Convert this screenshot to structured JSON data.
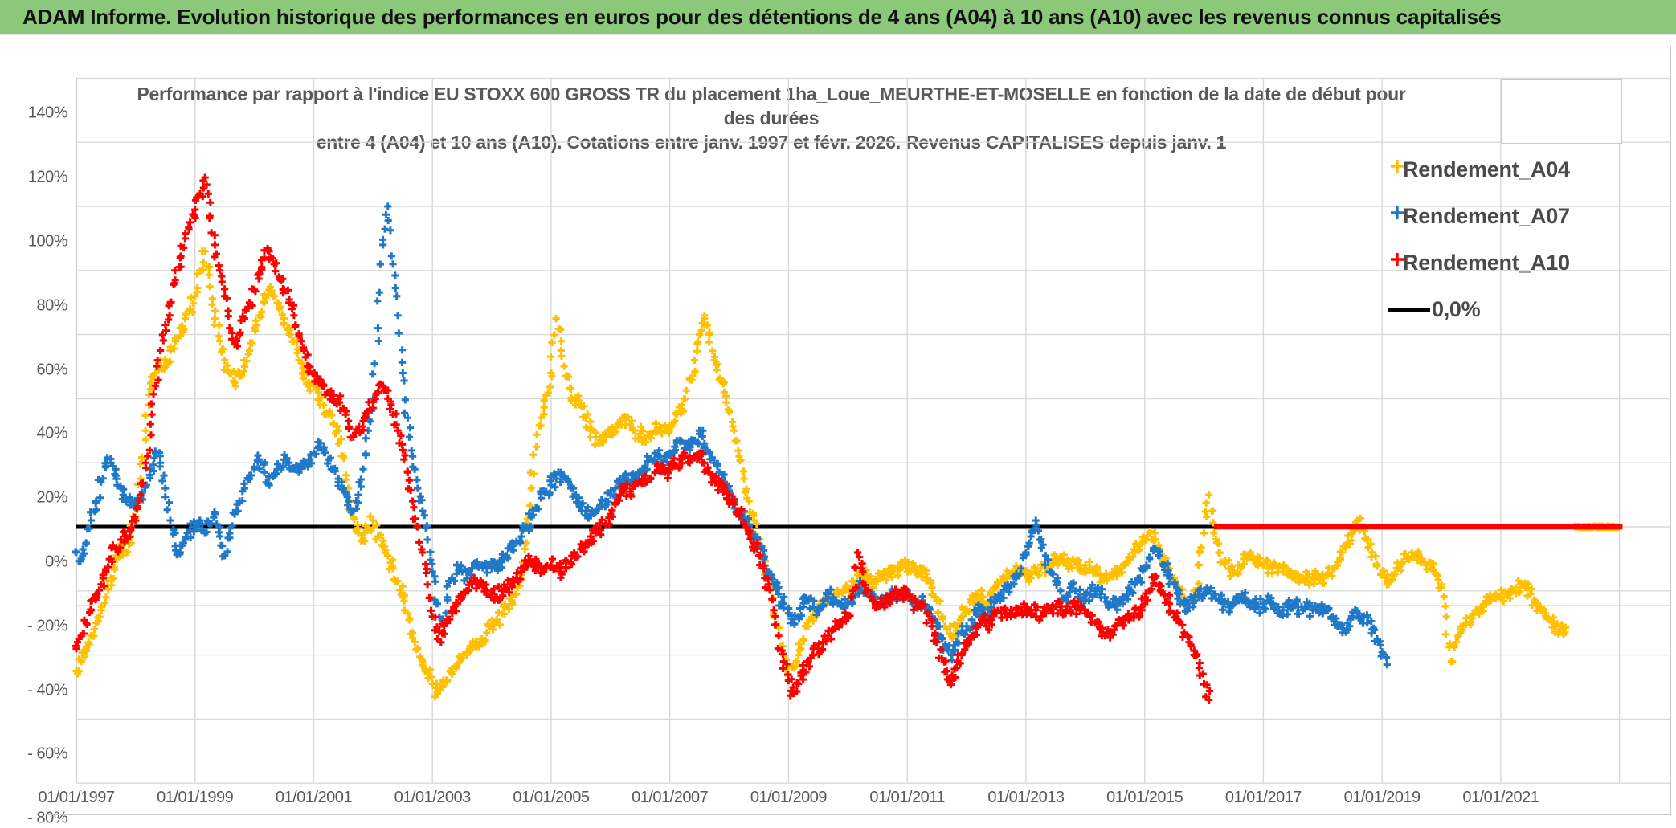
{
  "header": {
    "title": "ADAM Informe. Evolution historique des performances en euros pour des détentions de 4 ans (A04) à 10 ans (A10) avec les revenus connus capitalisés"
  },
  "chart": {
    "title_lines": [
      "Performance par rapport à l'indice EU STOXX 600 GROSS TR  du placement 1ha_Loue_MEURTHE-ET-MOSELLE en fonction de la date de début pour",
      "des durées",
      "entre 4 (A04) et 10 ans (A10). Cotations entre janv. 1997 et févr. 2026. Revenus CAPITALISES depuis janv. 1"
    ],
    "colors": {
      "a04": "#FFC000",
      "a07": "#1F78C8",
      "a10": "#FE0000",
      "zero_line": "#000000",
      "grid": "#D9D9D9",
      "axis_text": "#595959",
      "header_green": "#8CC87A",
      "accent_yellow": "#F5B80C"
    },
    "legend": [
      {
        "label": "Rendement_A04",
        "marker": "plus",
        "color": "#FFC000"
      },
      {
        "label": "Rendement_A07",
        "marker": "plus",
        "color": "#1F78C8"
      },
      {
        "label": "Rendement_A10",
        "marker": "plus",
        "color": "#FE0000"
      },
      {
        "label": "0,0%",
        "marker": "line",
        "color": "#000000"
      }
    ],
    "y_axis": {
      "min_pct": -80,
      "max_pct": 140,
      "step_pct": 20,
      "tick_labels": [
        "140%",
        "120%",
        "100%",
        "80%",
        "60%",
        "40%",
        "20%",
        "0%",
        "- 20%",
        "- 40%",
        "- 60%",
        "- 80%"
      ]
    },
    "x_axis": {
      "tick_labels": [
        "01/01/1997",
        "01/01/1999",
        "01/01/2001",
        "01/01/2003",
        "01/01/2005",
        "01/01/2007",
        "01/01/2009",
        "01/01/2011",
        "01/01/2013",
        "01/01/2015",
        "01/01/2017",
        "01/01/2019",
        "01/01/2021"
      ],
      "first_year": 1997,
      "label_interval_years": 2,
      "axis_end_year": 2023.9
    }
  },
  "chart_data": {
    "type": "scatter",
    "x_unit": "decimal_year_of_start_date",
    "y_unit": "percent_relative_performance",
    "marker": "plus",
    "zero_reference_line": {
      "value_pct": 0,
      "from_year": 1997.0,
      "to_year": 2023.05,
      "color": "#000000"
    },
    "series": [
      {
        "name": "Rendement_A04",
        "color": "#FFC000",
        "start_year": 1997.0,
        "step_months": 1,
        "values_pct": [
          -45,
          -42,
          -38,
          -34,
          -30,
          -26,
          -22,
          -16,
          -10,
          -6,
          -8,
          -3,
          3,
          15,
          30,
          43,
          48,
          52,
          50,
          55,
          58,
          62,
          65,
          68,
          72,
          80,
          86,
          75,
          65,
          58,
          52,
          48,
          45,
          47,
          50,
          55,
          62,
          66,
          70,
          74,
          72,
          68,
          65,
          62,
          58,
          52,
          48,
          45,
          44,
          42,
          38,
          35,
          32,
          30,
          22,
          12,
          3,
          -2,
          -4,
          -1,
          2,
          -3,
          -6,
          -9,
          -13,
          -17,
          -22,
          -27,
          -33,
          -38,
          -42,
          -46,
          -49,
          -52,
          -50,
          -48,
          -46,
          -43,
          -41,
          -39,
          -38,
          -36,
          -35,
          -33,
          -31,
          -29,
          -27,
          -25,
          -23,
          -21,
          -15,
          -5,
          12,
          25,
          34,
          41,
          48,
          65,
          55,
          47,
          43,
          40,
          38,
          34,
          30,
          28,
          27,
          28,
          29,
          31,
          33,
          34,
          32,
          30,
          29,
          28,
          29,
          30,
          31,
          30,
          31,
          33,
          36,
          40,
          46,
          52,
          60,
          66,
          60,
          52,
          46,
          42,
          36,
          30,
          22,
          15,
          8,
          2,
          -4,
          -10,
          -18,
          -27,
          -34,
          -40,
          -46,
          -44,
          -40,
          -35,
          -31,
          -28,
          -26,
          -24,
          -23,
          -22,
          -21,
          -20,
          -19,
          -17,
          -15,
          -14,
          -16,
          -18,
          -17,
          -16,
          -15,
          -14,
          -13,
          -12,
          -12,
          -13,
          -15,
          -14,
          -16,
          -19,
          -23,
          -28,
          -32,
          -34,
          -31,
          -28,
          -26,
          -23,
          -21,
          -22,
          -24,
          -21,
          -19,
          -17,
          -16,
          -15,
          -14,
          -14,
          -15,
          -16,
          -14,
          -13,
          -12,
          -11,
          -10,
          -10,
          -11,
          -12,
          -11,
          -12,
          -12,
          -13,
          -14,
          -15,
          -16,
          -15,
          -14,
          -13,
          -12,
          -10,
          -8,
          -6,
          -4,
          -2,
          -4,
          -7,
          -10,
          -13,
          -16,
          -19,
          -22,
          -25,
          -20,
          -12,
          -2,
          10,
          -2,
          -8,
          -11,
          -13,
          -14,
          -12,
          -10,
          -9,
          -10,
          -11,
          -12,
          -13,
          -12,
          -13,
          -14,
          -15,
          -16,
          -15,
          -16,
          -17,
          -16,
          -15,
          -16,
          -15,
          -13,
          -11,
          -8,
          -5,
          -2,
          2,
          0,
          -4,
          -8,
          -12,
          -15,
          -18,
          -15,
          -13,
          -11,
          -10,
          -8,
          -9,
          -10,
          -12,
          -13,
          -15,
          -18,
          -28,
          -42,
          -36,
          -32,
          -30,
          -28,
          -26,
          -25,
          -24,
          -23,
          -22,
          -22,
          -21,
          -20,
          -19,
          -18,
          -19,
          -21,
          -23,
          -25,
          -27,
          -29,
          -31,
          -32,
          -33
        ],
        "zero_tail": {
          "from_year": 2022.25,
          "to_year": 2023.0,
          "value_pct": 0
        }
      },
      {
        "name": "Rendement_A07",
        "color": "#1F78C8",
        "start_year": 1997.0,
        "step_months": 1,
        "values_pct": [
          -8,
          -10,
          -5,
          2,
          8,
          14,
          19,
          20,
          16,
          12,
          9,
          7,
          6,
          9,
          13,
          18,
          23,
          20,
          12,
          2,
          -6,
          -8,
          -4,
          -1,
          0,
          2,
          -2,
          1,
          4,
          -3,
          -9,
          -2,
          4,
          8,
          12,
          15,
          18,
          21,
          17,
          13,
          16,
          19,
          21,
          20,
          18,
          17,
          19,
          21,
          23,
          25,
          24,
          21,
          18,
          15,
          12,
          8,
          5,
          10,
          18,
          30,
          40,
          62,
          88,
          100,
          82,
          66,
          48,
          34,
          22,
          12,
          5,
          -4,
          -14,
          -24,
          -29,
          -22,
          -16,
          -12,
          -14,
          -16,
          -13,
          -11,
          -12,
          -13,
          -13,
          -12,
          -11,
          -9,
          -7,
          -5,
          -3,
          0,
          3,
          6,
          9,
          11,
          13,
          15,
          17,
          15,
          12,
          10,
          7,
          5,
          4,
          5,
          7,
          8,
          10,
          12,
          15,
          16,
          14,
          15,
          17,
          19,
          21,
          23,
          22,
          21,
          23,
          25,
          27,
          26,
          24,
          27,
          29,
          26,
          23,
          20,
          17,
          14,
          11,
          8,
          5,
          3,
          0,
          -3,
          -6,
          -10,
          -14,
          -18,
          -21,
          -24,
          -27,
          -30,
          -28,
          -25,
          -23,
          -25,
          -26,
          -23,
          -21,
          -22,
          -24,
          -25,
          -24,
          -22,
          -19,
          -18,
          -21,
          -23,
          -25,
          -24,
          -22,
          -21,
          -22,
          -21,
          -20,
          -22,
          -24,
          -23,
          -25,
          -28,
          -31,
          -35,
          -38,
          -40,
          -36,
          -33,
          -31,
          -29,
          -27,
          -26,
          -28,
          -25,
          -23,
          -21,
          -19,
          -18,
          -16,
          -13,
          -8,
          -3,
          2,
          -4,
          -9,
          -14,
          -17,
          -20,
          -22,
          -19,
          -20,
          -22,
          -23,
          -21,
          -20,
          -21,
          -22,
          -24,
          -25,
          -23,
          -22,
          -20,
          -18,
          -16,
          -13,
          -10,
          -7,
          -9,
          -12,
          -15,
          -18,
          -21,
          -24,
          -25,
          -23,
          -22,
          -21,
          -20,
          -21,
          -23,
          -24,
          -25,
          -24,
          -23,
          -22,
          -23,
          -24,
          -25,
          -24,
          -23,
          -24,
          -25,
          -26,
          -25,
          -24,
          -25,
          -26,
          -25,
          -26,
          -25,
          -25,
          -26,
          -28,
          -31,
          -33,
          -30,
          -28,
          -27,
          -28,
          -30,
          -32,
          -35,
          -39,
          -43
        ]
      },
      {
        "name": "Rendement_A10",
        "color": "#FE0000",
        "start_year": 1997.0,
        "step_months": 1,
        "values_pct": [
          -38,
          -34,
          -30,
          -26,
          -22,
          -18,
          -14,
          -10,
          -7,
          -4,
          -3,
          -1,
          2,
          10,
          20,
          32,
          44,
          55,
          63,
          70,
          77,
          84,
          90,
          95,
          99,
          104,
          109,
          97,
          88,
          80,
          72,
          62,
          57,
          60,
          65,
          70,
          74,
          79,
          84,
          86,
          82,
          78,
          74,
          70,
          66,
          60,
          55,
          50,
          48,
          46,
          44,
          42,
          41,
          40,
          37,
          33,
          28,
          30,
          33,
          36,
          39,
          42,
          44,
          40,
          35,
          30,
          24,
          17,
          8,
          0,
          -8,
          -18,
          -28,
          -35,
          -33,
          -30,
          -27,
          -24,
          -22,
          -20,
          -18,
          -17,
          -18,
          -20,
          -21,
          -22,
          -20,
          -19,
          -18,
          -16,
          -14,
          -12,
          -11,
          -12,
          -13,
          -13,
          -12,
          -13,
          -14,
          -13,
          -11,
          -9,
          -7,
          -5,
          -3,
          -2,
          -1,
          1,
          4,
          7,
          10,
          12,
          11,
          13,
          14,
          16,
          15,
          17,
          18,
          17,
          18,
          19,
          21,
          22,
          20,
          22,
          23,
          20,
          17,
          15,
          13,
          12,
          10,
          7,
          4,
          1,
          -2,
          -5,
          -9,
          -13,
          -18,
          -26,
          -34,
          -42,
          -48,
          -52,
          -49,
          -45,
          -42,
          -40,
          -38,
          -36,
          -34,
          -32,
          -30,
          -29,
          -28,
          -20,
          -8,
          -14,
          -20,
          -23,
          -25,
          -24,
          -23,
          -22,
          -21,
          -21,
          -21,
          -23,
          -25,
          -24,
          -27,
          -31,
          -36,
          -41,
          -45,
          -48,
          -44,
          -40,
          -37,
          -34,
          -31,
          -29,
          -31,
          -29,
          -27,
          -26,
          -27,
          -28,
          -27,
          -26,
          -25,
          -27,
          -26,
          -28,
          -27,
          -26,
          -25,
          -26,
          -27,
          -26,
          -25,
          -26,
          -27,
          -28,
          -30,
          -32,
          -34,
          -33,
          -31,
          -30,
          -29,
          -28,
          -27,
          -26,
          -24,
          -20,
          -16,
          -18,
          -21,
          -24,
          -27,
          -30,
          -33,
          -36,
          -40,
          -44,
          -49,
          -54
        ],
        "zero_tail": {
          "from_year": 2016.17,
          "to_year": 2023.05,
          "value_pct": 0,
          "rendered_as": "thick_red_line_on_zero"
        }
      }
    ]
  }
}
